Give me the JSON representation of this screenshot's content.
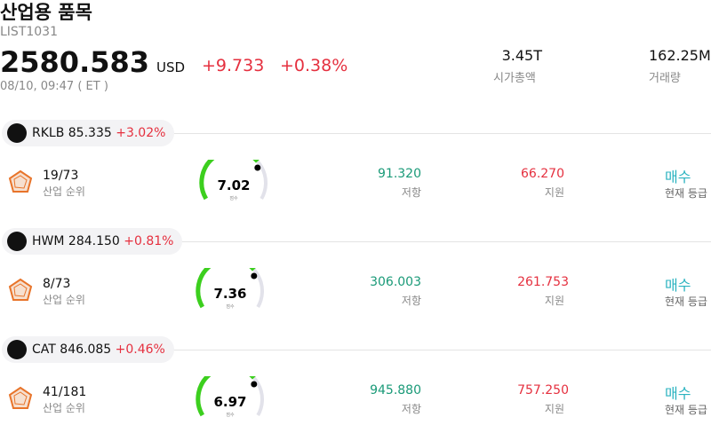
{
  "header": {
    "title": "산업용 품목",
    "code": "LIST1031",
    "price": "2580.583",
    "currency": "USD",
    "change": "+9.733",
    "change_percent": "+0.38%",
    "time": "08/10, 09:47 ( ET )"
  },
  "stats": [
    {
      "value": "3.45T",
      "label": "시가총액"
    },
    {
      "value": "162.25M",
      "label": "거래량"
    }
  ],
  "stocks": [
    {
      "ticker": "RKLB",
      "price": "85.335",
      "change": "+3.02%",
      "rank": "19/73",
      "rank_label": "산업 순위",
      "score": "7.02",
      "score_label": "점수",
      "resistance": "91.320",
      "resistance_label": "저항",
      "support": "66.270",
      "support_label": "지원",
      "rating": "매수",
      "rating_label": "현재 등급"
    },
    {
      "ticker": "HWM",
      "price": "284.150",
      "change": "+0.81%",
      "rank": "8/73",
      "rank_label": "산업 순위",
      "score": "7.36",
      "score_label": "점수",
      "resistance": "306.003",
      "resistance_label": "저항",
      "support": "261.753",
      "support_label": "지원",
      "rating": "매수",
      "rating_label": "현재 등급"
    },
    {
      "ticker": "CAT",
      "price": "846.085",
      "change": "+0.46%",
      "rank": "41/181",
      "rank_label": "산업 순위",
      "score": "6.97",
      "score_label": "점수",
      "resistance": "945.880",
      "resistance_label": "저항",
      "support": "757.250",
      "support_label": "지원",
      "rating": "매수",
      "rating_label": "현재 등급"
    }
  ]
}
